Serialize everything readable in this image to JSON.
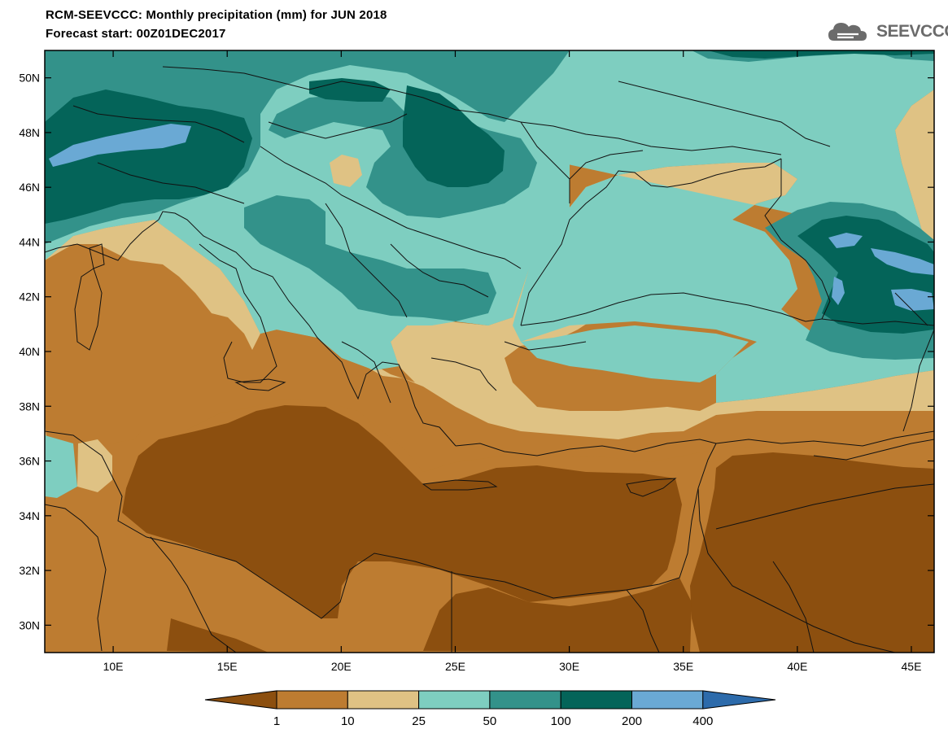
{
  "header": {
    "title_line1": "RCM-SEEVCCC: Monthly precipitation (mm) for JUN 2018",
    "title_line2": "Forecast start: 00Z01DEC2017"
  },
  "logo": {
    "text": "SEEVCCC",
    "icon": "cloud-icon"
  },
  "map": {
    "lon_range": [
      7,
      46
    ],
    "lat_range": [
      29,
      51
    ],
    "lat_ticks": [
      "50N",
      "48N",
      "46N",
      "44N",
      "42N",
      "40N",
      "38N",
      "36N",
      "34N",
      "32N",
      "30N"
    ],
    "lon_ticks": [
      "10E",
      "15E",
      "20E",
      "25E",
      "30E",
      "35E",
      "40E",
      "45E"
    ]
  },
  "colorbar": {
    "levels": [
      "1",
      "10",
      "25",
      "50",
      "100",
      "200",
      "400"
    ],
    "colors": [
      "#8c4f0f",
      "#bd7c31",
      "#dfc284",
      "#7ecec0",
      "#33928a",
      "#046459",
      "#6aa9d4",
      "#2d6bab"
    ]
  }
}
